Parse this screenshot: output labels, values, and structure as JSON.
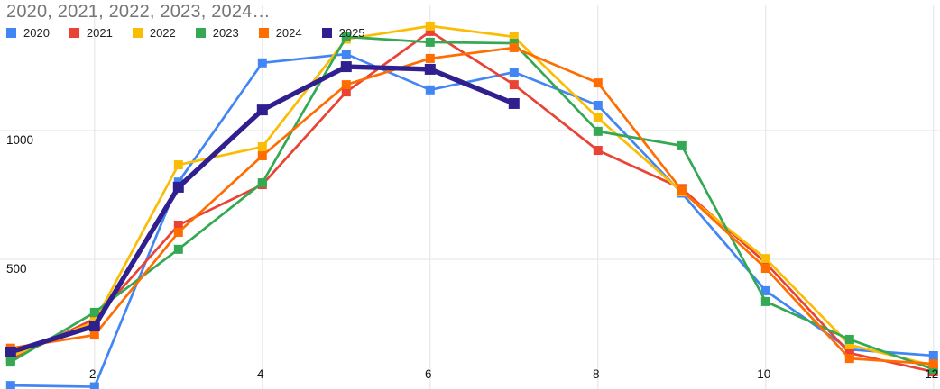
{
  "title": "2020, 2021, 2022, 2023, 2024…",
  "legend": [
    {
      "label": "2020",
      "color": "#4285F4"
    },
    {
      "label": "2021",
      "color": "#EA4335"
    },
    {
      "label": "2022",
      "color": "#FBBC04"
    },
    {
      "label": "2023",
      "color": "#34A853"
    },
    {
      "label": "2024",
      "color": "#FF6D01"
    },
    {
      "label": "2025",
      "color": "#30208F"
    }
  ],
  "chart_data": {
    "type": "line",
    "title": "2020, 2021, 2022, 2023, 2024…",
    "xlabel": "",
    "ylabel": "",
    "x": [
      1,
      2,
      3,
      4,
      5,
      6,
      7,
      8,
      9,
      10,
      11,
      12
    ],
    "x_ticks": [
      2,
      4,
      6,
      8,
      10,
      12
    ],
    "y_ticks": [
      500,
      1000
    ],
    "ylim": [
      0,
      1507
    ],
    "xlim": [
      1,
      12
    ],
    "grid": true,
    "legend_position": "top",
    "marker": "square",
    "series": [
      {
        "name": "2020",
        "color": "#4285F4",
        "emphasis": false,
        "values": [
          10,
          5,
          800,
          1263,
          1297,
          1158,
          1227,
          1098,
          757,
          378,
          150,
          126
        ]
      },
      {
        "name": "2021",
        "color": "#EA4335",
        "emphasis": false,
        "values": [
          112,
          269,
          633,
          790,
          1150,
          1385,
          1178,
          923,
          775,
          486,
          136,
          63
        ]
      },
      {
        "name": "2022",
        "color": "#FBBC04",
        "emphasis": false,
        "values": [
          122,
          258,
          867,
          937,
          1355,
          1406,
          1364,
          1049,
          762,
          503,
          168,
          87
        ]
      },
      {
        "name": "2023",
        "color": "#34A853",
        "emphasis": false,
        "values": [
          101,
          294,
          539,
          797,
          1364,
          1343,
          1339,
          997,
          941,
          336,
          189,
          73
        ]
      },
      {
        "name": "2024",
        "color": "#FF6D01",
        "emphasis": false,
        "values": [
          155,
          206,
          605,
          902,
          1178,
          1280,
          1322,
          1185,
          768,
          465,
          115,
          94
        ]
      },
      {
        "name": "2025",
        "color": "#30208F",
        "emphasis": true,
        "values": [
          140,
          241,
          780,
          1080,
          1248,
          1238,
          1105
        ]
      }
    ]
  },
  "colors": {
    "background": "#ffffff",
    "grid": "#e3e3e3",
    "axis_text": "#131313",
    "title_text": "#757575"
  }
}
